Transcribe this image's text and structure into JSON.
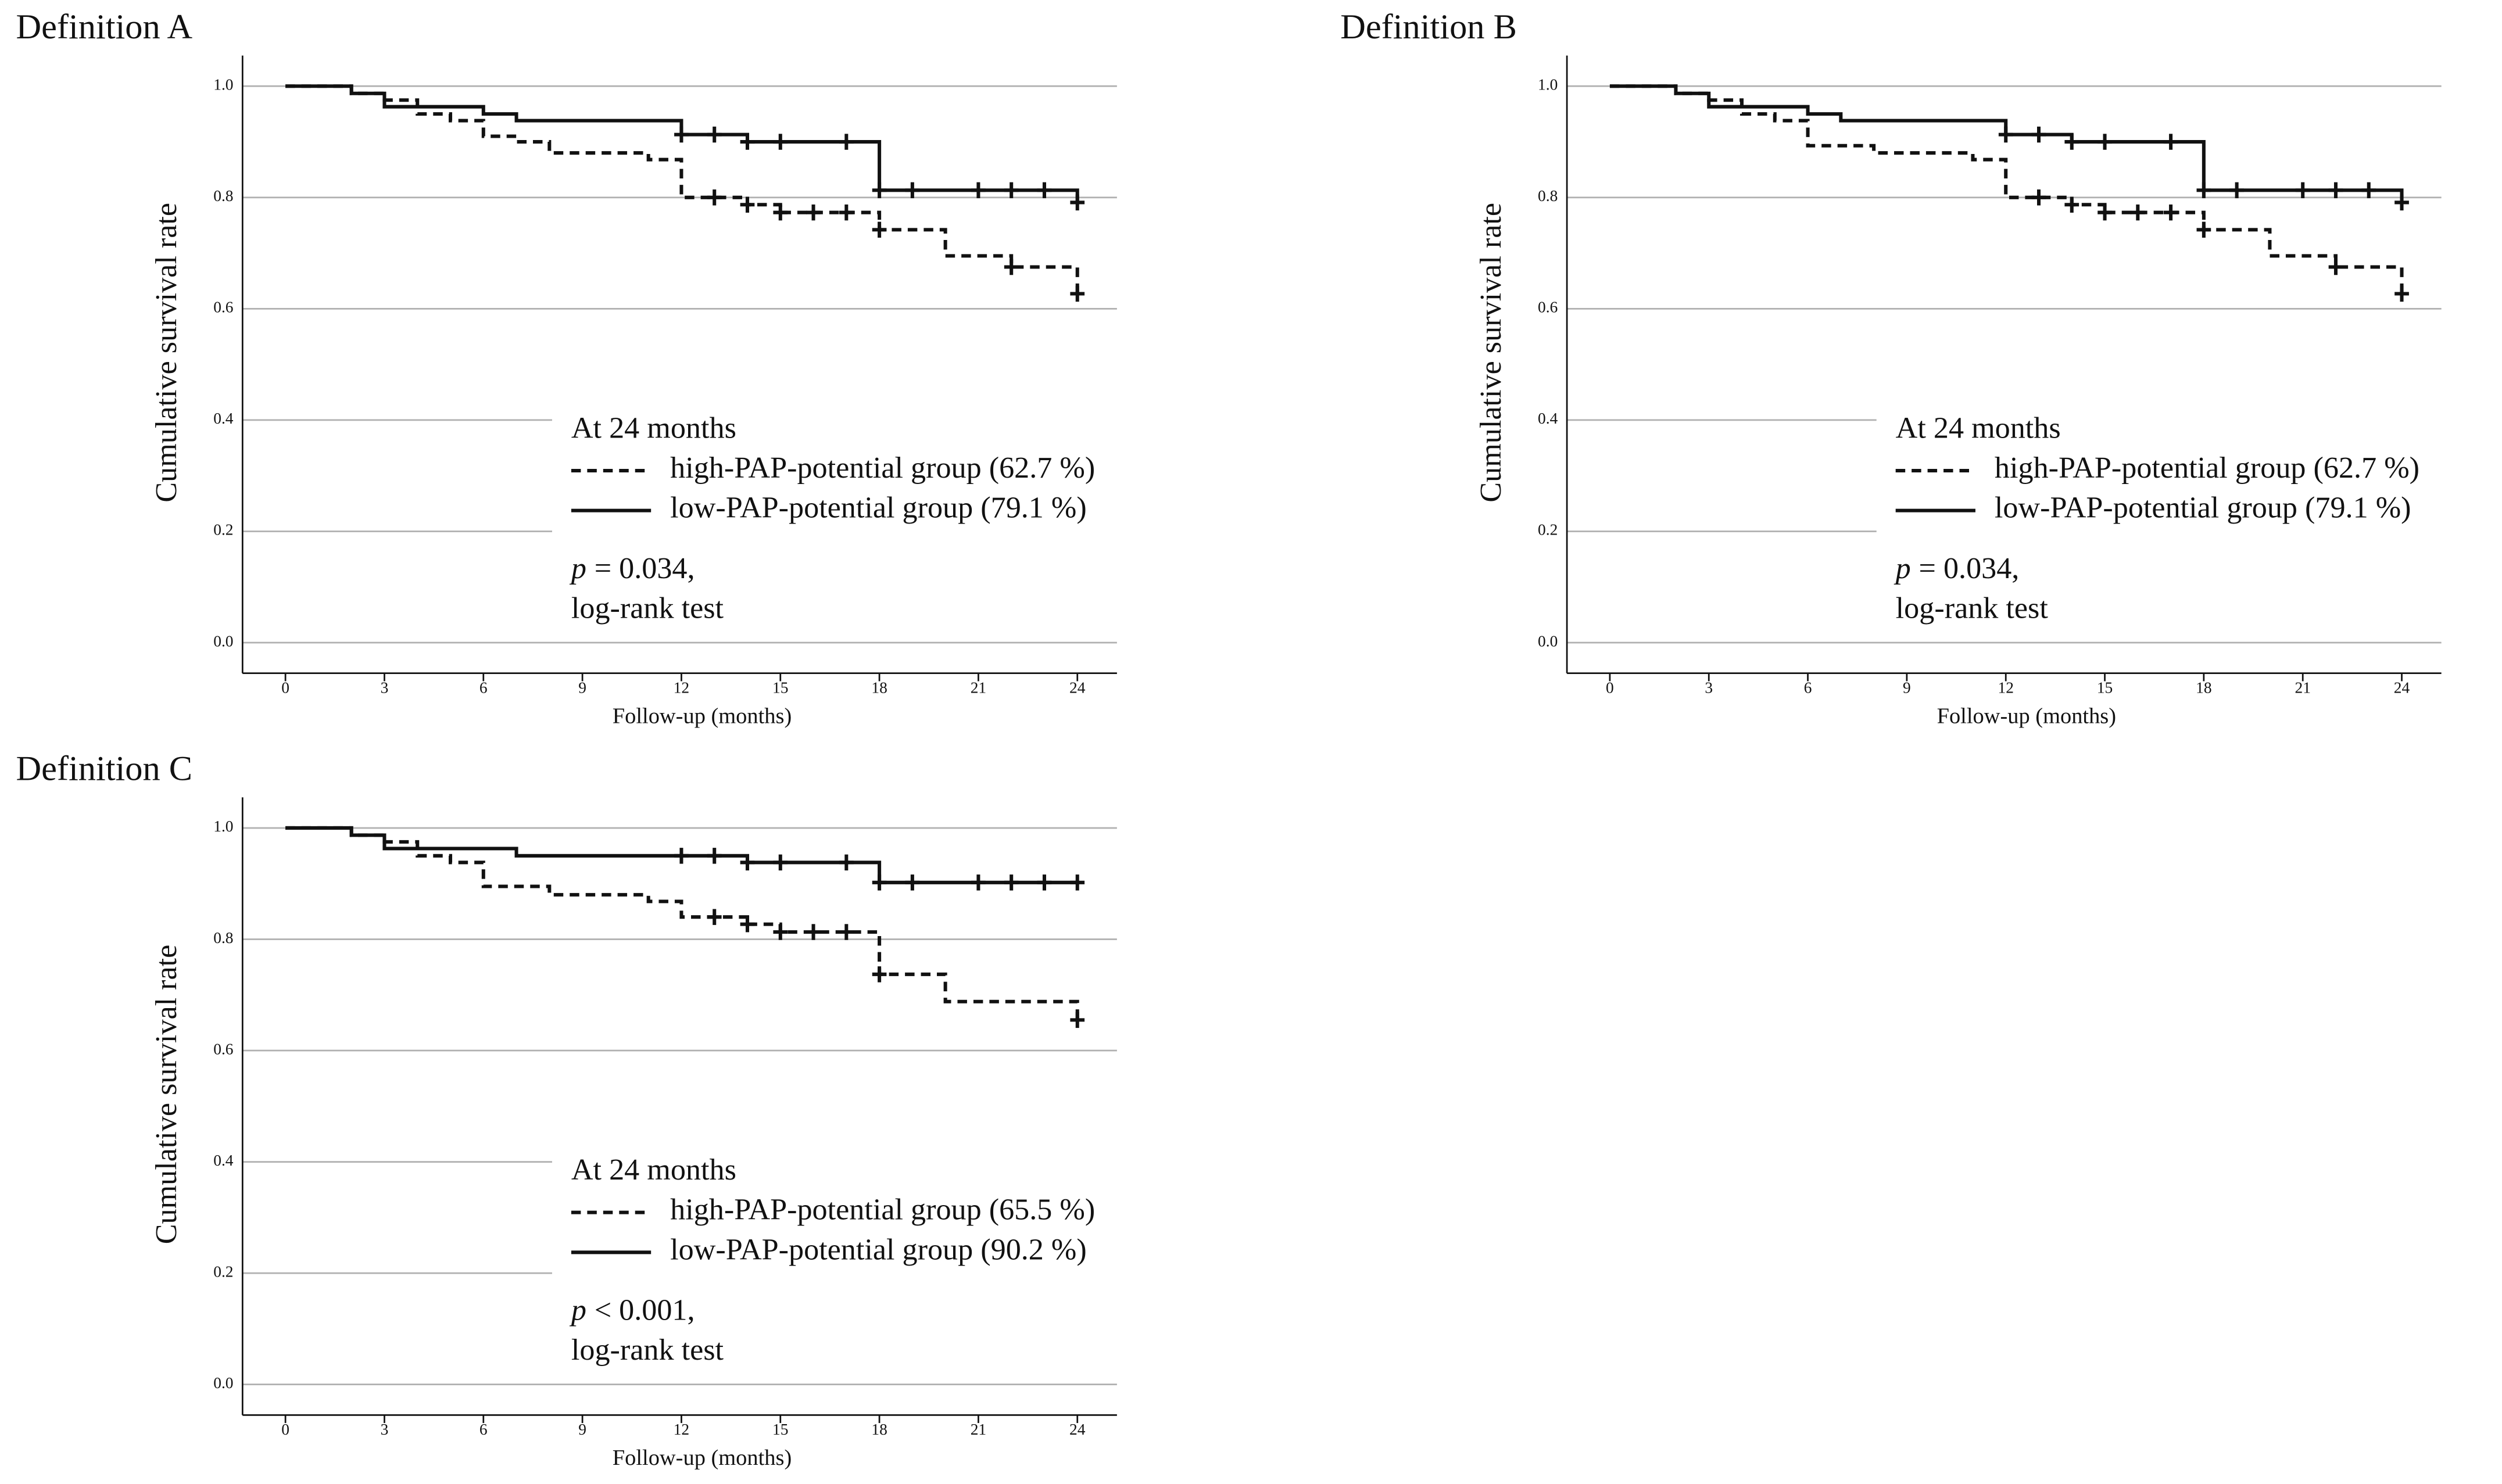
{
  "chart_data": [
    {
      "type": "survival",
      "title": "Definition A",
      "x_label": "Follow-up (months)",
      "y_label": "Cumulative survival rate",
      "xlim": [
        -1.3,
        25.2
      ],
      "ylim": [
        -0.055,
        1.055
      ],
      "xticks": [
        0,
        3,
        6,
        9,
        12,
        15,
        18,
        21,
        24
      ],
      "yticks": [
        {
          "value": 0,
          "label": "0.0"
        },
        {
          "value": 0.2,
          "label": "0.2"
        },
        {
          "value": 0.4,
          "label": "0.4"
        },
        {
          "value": 0.6,
          "label": "0.6"
        },
        {
          "value": 0.8,
          "label": "0.8"
        },
        {
          "value": 1,
          "label": "1.0"
        }
      ],
      "grid": true,
      "legend_title": "At 24 months",
      "p_symbol": "p",
      "p_text": "= 0.034,",
      "test": "log-rank test",
      "series": [
        {
          "name": "high-PAP-potential group (62.7 %)",
          "color": "#111111",
          "line_style": "dashed",
          "x": [
            0,
            2,
            3,
            4,
            5,
            6,
            7,
            8,
            11,
            12,
            14,
            15,
            18,
            20,
            22,
            24
          ],
          "values": [
            1,
            0.987,
            0.975,
            0.95,
            0.938,
            0.91,
            0.9,
            0.88,
            0.868,
            0.8,
            0.787,
            0.773,
            0.742,
            0.695,
            0.675,
            0.627
          ],
          "censor_x": [
            13,
            14,
            15,
            16,
            17,
            18,
            22,
            24
          ],
          "censor_values": [
            0.8,
            0.787,
            0.773,
            0.773,
            0.773,
            0.742,
            0.675,
            0.627
          ]
        },
        {
          "name": "low-PAP-potential group (79.1 %)",
          "color": "#111111",
          "line_style": "solid",
          "x": [
            0,
            2,
            3,
            6,
            7,
            12,
            14,
            18,
            24
          ],
          "values": [
            1,
            0.987,
            0.963,
            0.95,
            0.938,
            0.913,
            0.9,
            0.813,
            0.791
          ],
          "censor_x": [
            12,
            13,
            14,
            15,
            17,
            18,
            19,
            21,
            22,
            23,
            24
          ],
          "censor_values": [
            0.913,
            0.913,
            0.9,
            0.9,
            0.9,
            0.813,
            0.813,
            0.813,
            0.813,
            0.813,
            0.791
          ]
        }
      ]
    },
    {
      "type": "survival",
      "title": "Definition B",
      "x_label": "Follow-up (months)",
      "y_label": "Cumulative survival rate",
      "xlim": [
        -1.3,
        25.2
      ],
      "ylim": [
        -0.055,
        1.055
      ],
      "xticks": [
        0,
        3,
        6,
        9,
        12,
        15,
        18,
        21,
        24
      ],
      "yticks": [
        {
          "value": 0,
          "label": "0.0"
        },
        {
          "value": 0.2,
          "label": "0.2"
        },
        {
          "value": 0.4,
          "label": "0.4"
        },
        {
          "value": 0.6,
          "label": "0.6"
        },
        {
          "value": 0.8,
          "label": "0.8"
        },
        {
          "value": 1,
          "label": "1.0"
        }
      ],
      "grid": true,
      "legend_title": "At 24 months",
      "p_symbol": "p",
      "p_text": "= 0.034,",
      "test": "log-rank test",
      "series": [
        {
          "name": "high-PAP-potential group (62.7 %)",
          "color": "#111111",
          "line_style": "dashed",
          "x": [
            0,
            2,
            3,
            4,
            5,
            6,
            8,
            11,
            12,
            14,
            15,
            18,
            20,
            22,
            24
          ],
          "values": [
            1,
            0.987,
            0.975,
            0.95,
            0.938,
            0.893,
            0.88,
            0.868,
            0.8,
            0.787,
            0.773,
            0.742,
            0.695,
            0.675,
            0.627
          ],
          "censor_x": [
            13,
            14,
            15,
            16,
            17,
            18,
            22,
            24
          ],
          "censor_values": [
            0.8,
            0.787,
            0.773,
            0.773,
            0.773,
            0.742,
            0.675,
            0.627
          ]
        },
        {
          "name": "low-PAP-potential group (79.1 %)",
          "color": "#111111",
          "line_style": "solid",
          "x": [
            0,
            2,
            3,
            6,
            7,
            12,
            14,
            18,
            24
          ],
          "values": [
            1,
            0.987,
            0.963,
            0.95,
            0.938,
            0.913,
            0.9,
            0.813,
            0.791
          ],
          "censor_x": [
            12,
            13,
            14,
            15,
            17,
            18,
            19,
            21,
            22,
            23,
            24
          ],
          "censor_values": [
            0.913,
            0.913,
            0.9,
            0.9,
            0.9,
            0.813,
            0.813,
            0.813,
            0.813,
            0.813,
            0.791
          ]
        }
      ]
    },
    {
      "type": "survival",
      "title": "Definition C",
      "x_label": "Follow-up (months)",
      "y_label": "Cumulative survival rate",
      "xlim": [
        -1.3,
        25.2
      ],
      "ylim": [
        -0.055,
        1.055
      ],
      "xticks": [
        0,
        3,
        6,
        9,
        12,
        15,
        18,
        21,
        24
      ],
      "yticks": [
        {
          "value": 0,
          "label": "0.0"
        },
        {
          "value": 0.2,
          "label": "0.2"
        },
        {
          "value": 0.4,
          "label": "0.4"
        },
        {
          "value": 0.6,
          "label": "0.6"
        },
        {
          "value": 0.8,
          "label": "0.8"
        },
        {
          "value": 1,
          "label": "1.0"
        }
      ],
      "grid": true,
      "legend_title": "At 24 months",
      "p_symbol": "p",
      "p_text": "< 0.001,",
      "test": "log-rank test",
      "series": [
        {
          "name": "high-PAP-potential group (65.5 %)",
          "color": "#111111",
          "line_style": "dashed",
          "x": [
            0,
            2,
            3,
            4,
            5,
            6,
            8,
            11,
            12,
            14,
            15,
            18,
            20,
            24
          ],
          "values": [
            1,
            0.987,
            0.975,
            0.95,
            0.938,
            0.895,
            0.88,
            0.868,
            0.84,
            0.827,
            0.813,
            0.737,
            0.688,
            0.655
          ],
          "censor_x": [
            13,
            14,
            15,
            16,
            17,
            18,
            24
          ],
          "censor_values": [
            0.84,
            0.827,
            0.813,
            0.813,
            0.813,
            0.737,
            0.655
          ]
        },
        {
          "name": "low-PAP-potential group (90.2 %)",
          "color": "#111111",
          "line_style": "solid",
          "x": [
            0,
            2,
            3,
            7,
            14,
            18,
            24
          ],
          "values": [
            1,
            0.987,
            0.963,
            0.95,
            0.938,
            0.902,
            0.902
          ],
          "censor_x": [
            12,
            13,
            14,
            15,
            17,
            18,
            19,
            21,
            22,
            23,
            24
          ],
          "censor_values": [
            0.95,
            0.95,
            0.938,
            0.938,
            0.938,
            0.902,
            0.902,
            0.902,
            0.902,
            0.902,
            0.902
          ]
        }
      ]
    }
  ]
}
